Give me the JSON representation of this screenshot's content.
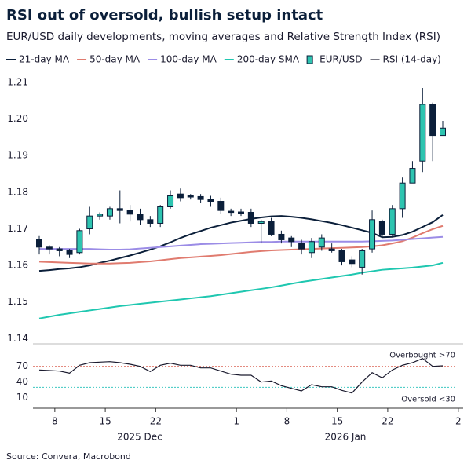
{
  "chart_data": {
    "type": "candlestick",
    "title": "RSI out of oversold, bullish setup intact",
    "subtitle": "EUR/USD daily developments, moving averages and Relative Strength Index (RSI)",
    "source": "Source: Convera, Macrobond",
    "categories": [
      null,
      "8",
      null,
      null,
      null,
      null,
      "15",
      null,
      null,
      null,
      null,
      "22",
      null,
      null,
      null,
      null,
      null,
      null,
      null,
      "1",
      null,
      null,
      null,
      null,
      "8",
      null,
      null,
      null,
      null,
      "15",
      null,
      null,
      null,
      null,
      "22",
      null,
      null,
      null,
      null,
      null,
      null,
      "2"
    ],
    "x_group_labels": [
      "2025 Dec",
      "2026 Jan"
    ],
    "ylim": [
      1.139,
      1.2115
    ],
    "yticks": [
      1.14,
      1.15,
      1.16,
      1.17,
      1.18,
      1.19,
      {
        "value": 1.2,
        "label": "1.20"
      },
      1.21
    ],
    "series": [
      {
        "name": "21-day MA",
        "color": "#0b1f3a",
        "values": [
          1.1585,
          1.1587,
          1.159,
          1.1592,
          1.1595,
          1.16,
          1.1607,
          1.1613,
          1.162,
          1.1627,
          1.1635,
          1.1643,
          1.1652,
          1.1663,
          1.1675,
          1.1685,
          1.1694,
          1.1703,
          1.171,
          1.1717,
          1.1722,
          1.1727,
          1.1731,
          1.1734,
          1.1735,
          1.1733,
          1.173,
          1.1726,
          1.1721,
          1.1716,
          1.171,
          1.1703,
          1.1696,
          1.1689,
          1.1677,
          1.1678,
          1.1683,
          1.1692,
          1.1705,
          1.1718,
          1.1738,
          null
        ]
      },
      {
        "name": "50-day MA",
        "color": "#e07b6f",
        "values": [
          1.161,
          1.1609,
          1.1608,
          1.1607,
          1.1606,
          1.1605,
          1.1605,
          1.1605,
          1.1606,
          1.1607,
          1.1609,
          1.1611,
          1.1614,
          1.1617,
          1.162,
          1.1622,
          1.1624,
          1.1626,
          1.1628,
          1.1631,
          1.1634,
          1.1637,
          1.1639,
          1.1641,
          1.1642,
          1.1643,
          1.1644,
          1.1645,
          1.1646,
          1.1647,
          1.1648,
          1.1649,
          1.165,
          1.1652,
          1.1655,
          1.166,
          1.1666,
          1.1676,
          1.1688,
          1.1699,
          1.1708,
          null
        ]
      },
      {
        "name": "100-day MA",
        "color": "#9b8ce6",
        "values": [
          1.1645,
          1.1645,
          1.1645,
          1.1645,
          1.1645,
          1.1645,
          1.1644,
          1.1643,
          1.1643,
          1.1644,
          1.1646,
          1.1648,
          1.165,
          1.1652,
          1.1654,
          1.1656,
          1.1658,
          1.1659,
          1.166,
          1.1661,
          1.1662,
          1.1663,
          1.1664,
          1.1664,
          1.1665,
          1.1665,
          1.1665,
          1.1665,
          1.1665,
          1.1665,
          1.1665,
          1.1665,
          1.1665,
          1.1666,
          1.1667,
          1.1668,
          1.167,
          1.1672,
          1.1674,
          1.1676,
          1.1678,
          null
        ]
      },
      {
        "name": "200-day SMA",
        "color": "#1fc7b0",
        "values": [
          1.1455,
          1.146,
          1.1465,
          1.1469,
          1.1473,
          1.1477,
          1.1481,
          1.1485,
          1.1489,
          1.1492,
          1.1495,
          1.1498,
          1.1501,
          1.1504,
          1.1507,
          1.151,
          1.1513,
          1.1516,
          1.152,
          1.1524,
          1.1528,
          1.1532,
          1.1536,
          1.154,
          1.1545,
          1.155,
          1.1555,
          1.1559,
          1.1563,
          1.1567,
          1.1571,
          1.1575,
          1.158,
          1.1584,
          1.1588,
          1.159,
          1.1592,
          1.1594,
          1.1597,
          1.16,
          1.1607,
          null
        ]
      }
    ],
    "candles": {
      "name": "EUR/USD",
      "up_color": "#2ec4b0",
      "down_color": "#0b1f3a",
      "outline": "#0b1f3a",
      "open": [
        1.167,
        1.165,
        1.1645,
        1.164,
        1.1635,
        1.17,
        1.1735,
        1.1735,
        1.1755,
        1.175,
        1.174,
        1.1725,
        1.1715,
        1.176,
        1.1795,
        1.179,
        1.1788,
        1.178,
        1.1775,
        1.1748,
        1.1746,
        1.1745,
        1.1715,
        1.172,
        1.1685,
        1.1675,
        1.166,
        1.1635,
        1.165,
        1.1645,
        1.164,
        1.1615,
        1.1595,
        1.1645,
        1.172,
        1.1685,
        1.1755,
        1.1825,
        1.1885,
        1.204,
        1.1955,
        null
      ],
      "high": [
        1.168,
        1.1655,
        1.165,
        1.1645,
        1.17,
        1.176,
        1.1745,
        1.176,
        1.1805,
        1.1765,
        1.1755,
        1.1735,
        1.1765,
        1.1805,
        1.181,
        1.1795,
        1.1795,
        1.179,
        1.1785,
        1.1755,
        1.1755,
        1.1755,
        1.1725,
        1.173,
        1.1695,
        1.168,
        1.167,
        1.1675,
        1.1685,
        1.166,
        1.1645,
        1.1625,
        1.1645,
        1.175,
        1.1725,
        1.1765,
        1.184,
        1.1885,
        1.2085,
        1.2045,
        1.1995,
        null
      ],
      "low": [
        1.163,
        1.163,
        1.1625,
        1.162,
        1.163,
        1.1685,
        1.1725,
        1.1725,
        1.1715,
        1.172,
        1.171,
        1.1705,
        1.1705,
        1.1755,
        1.1775,
        1.178,
        1.177,
        1.176,
        1.174,
        1.1735,
        1.1735,
        1.1705,
        1.166,
        1.168,
        1.166,
        1.165,
        1.163,
        1.162,
        1.164,
        1.1635,
        1.16,
        1.1595,
        1.1575,
        1.1635,
        1.1675,
        1.168,
        1.173,
        1.1825,
        1.1855,
        1.1885,
        1.1955,
        null
      ],
      "close": [
        1.165,
        1.1645,
        1.164,
        1.163,
        1.1695,
        1.1735,
        1.174,
        1.1755,
        1.175,
        1.174,
        1.1725,
        1.1715,
        1.176,
        1.179,
        1.1785,
        1.1788,
        1.178,
        1.1775,
        1.175,
        1.1745,
        1.1742,
        1.1715,
        1.172,
        1.1685,
        1.167,
        1.1665,
        1.1645,
        1.1665,
        1.1675,
        1.164,
        1.161,
        1.1605,
        1.164,
        1.1725,
        1.1685,
        1.1755,
        1.1825,
        1.1865,
        1.204,
        1.1955,
        1.1975,
        null
      ]
    },
    "rsi": {
      "name": "RSI (14-day)",
      "color": "#1a1a2e",
      "values": [
        63,
        62,
        61,
        57,
        72,
        77,
        78,
        79,
        77,
        74,
        70,
        60,
        72,
        76,
        72,
        72,
        67,
        67,
        61,
        55,
        53,
        53,
        40,
        42,
        33,
        28,
        23,
        35,
        31,
        31,
        24,
        19,
        40,
        58,
        48,
        63,
        72,
        77,
        85,
        70,
        71,
        null
      ],
      "ylim": [
        -10,
        110
      ],
      "yticks": [
        10,
        40,
        70
      ],
      "levels": [
        {
          "value": 70,
          "label": "Overbought >70",
          "color": "#e07b6f"
        },
        {
          "value": 30,
          "label": "Oversold <30",
          "color": "#3cc8c0"
        }
      ]
    }
  }
}
